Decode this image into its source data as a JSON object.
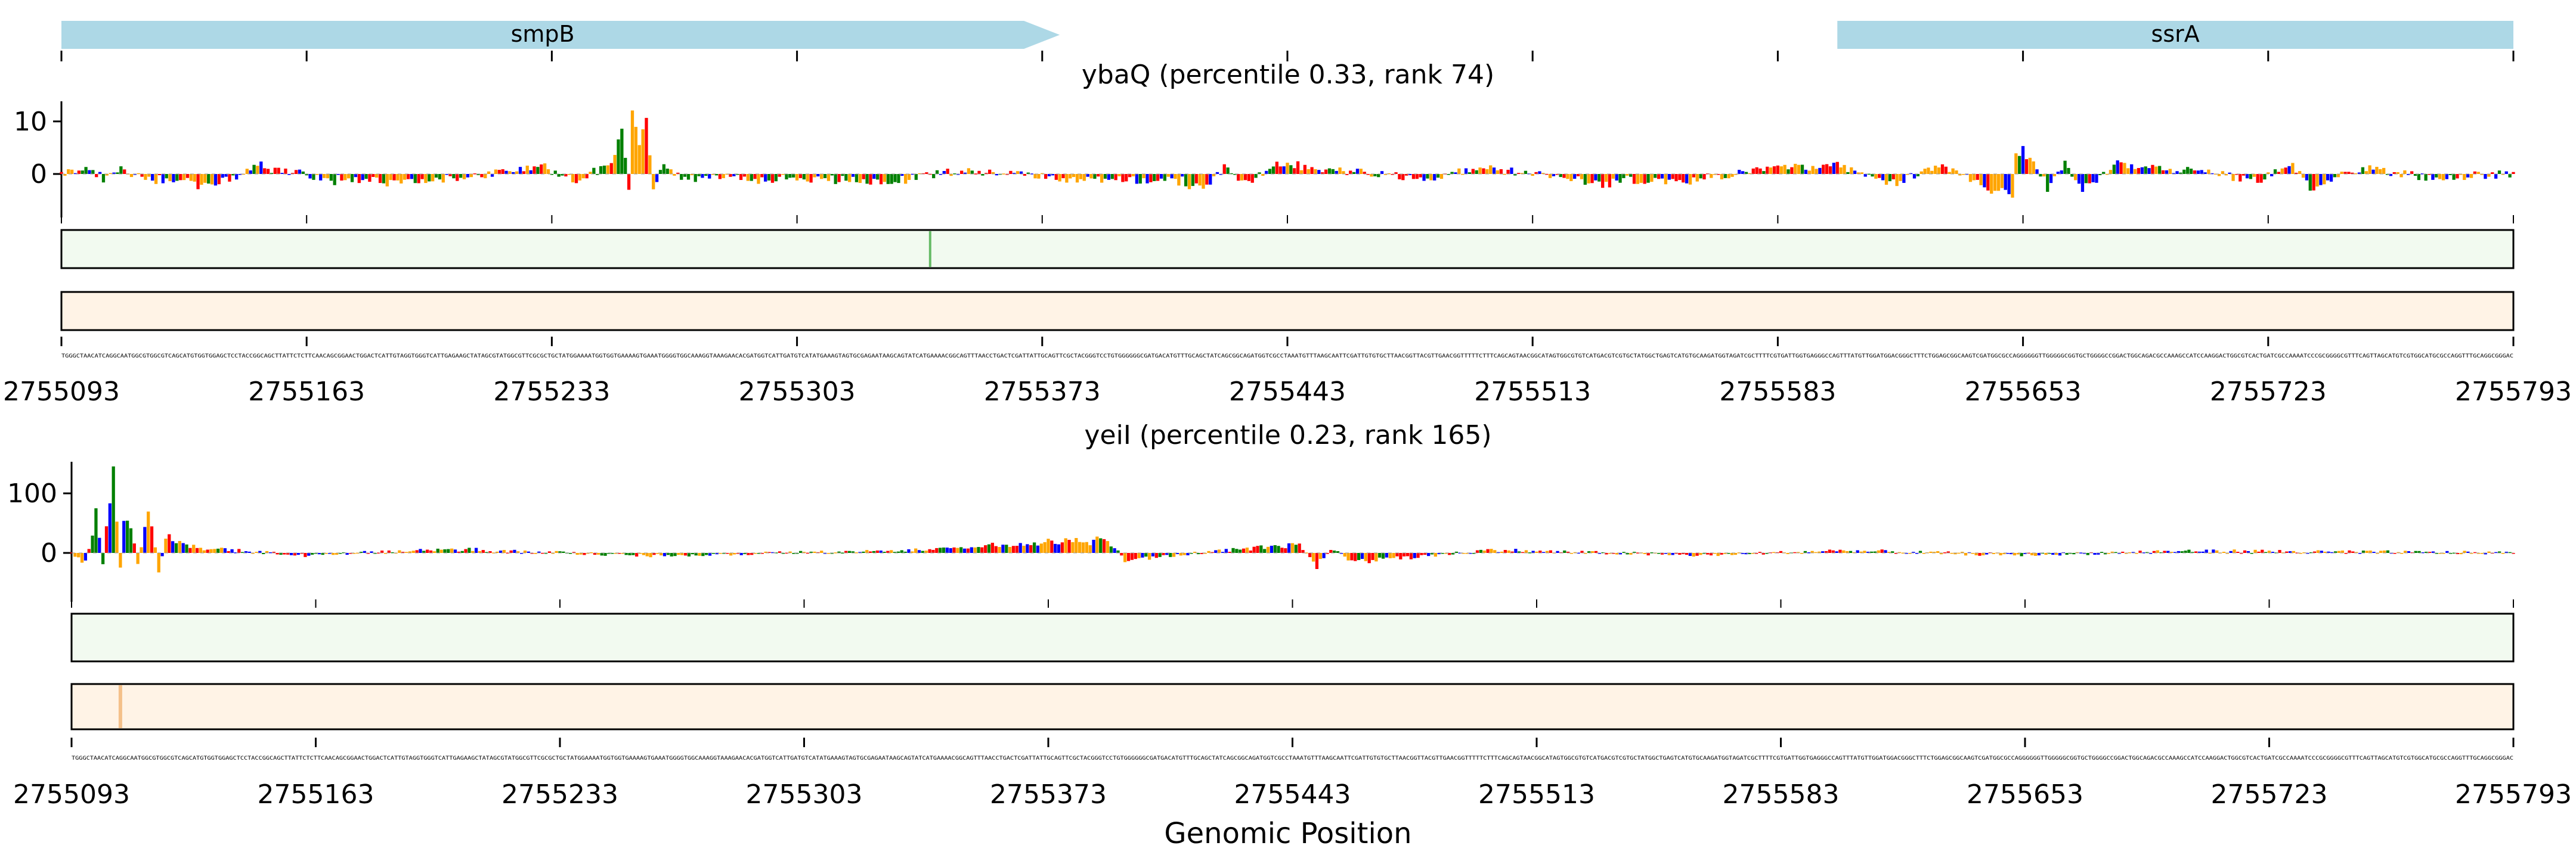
{
  "figure": {
    "xlabel": "Genomic Position"
  },
  "genes": [
    {
      "name": "smpB",
      "start": 2755093,
      "end": 2755378,
      "strand": "+",
      "color": "#add8e6"
    },
    {
      "name": "ssrA",
      "start": 2755600,
      "end": 2755793,
      "strand": "+",
      "color": "#add8e6"
    }
  ],
  "x_ticks": [
    2755093,
    2755163,
    2755233,
    2755303,
    2755373,
    2755443,
    2755513,
    2755583,
    2755653,
    2755723,
    2755793
  ],
  "base_colors": {
    "A": "#008000",
    "C": "#0000ff",
    "G": "#ffa500",
    "T": "#ff0000"
  },
  "sequence": "TGGGCTAACATCAGGCAATGGCGTGGCGTCAGCATGTGGTGGAGCTCCTACCGGCAGCTTATTCTCTTCAACAGCGGAACTGGACTCATTGTAGGTGGGTCATTGAGAAGCTATAGCGTATGGCGTTCGCGCTGCTATGGAAAATGGTGGTGAAAAGTGAAATGGGGTGGCAAAGGTAAAGAACACGATGGTCATTGATGTCATATGAAAGTAGTGCGAGAATAAGCAGTATCATGAAAACGGCAGTTTAACCTGACTCGATTATTGCAGTTCGCTACGGGTCCTGTGGGGGGCGATGACATGTTTGCAGCTATCAGCGGCAGATGGTCGCCTAAATGTTTAAGCAATTCGATTGTGTGCTTAACGGTTACGTTGAACGGTTTTTCTTTCAGCAGTAACGGCATAGTGGCGTGTCATGACGTCGTGCTATGGCTGAGTCATGTGCAAGATGGTAGATCGCTTTTCGTGATTGGTGAGGGCCAGTTTATGTTGGATGGACGGGCTTTCTGGAGCGGCAAGTCGATGGCGCCAGGGGGGTTGGGGGCGGTGCTGGGGCCGGACTGGCAGACGCCAAAGCCATCCAAGGACTGGCGTCACTGATCGCCAAAATCCCGCGGGGCGTTTCAGTTAGCATGTCGTGGCATGCGCCAGGTTTGCAGGCGGGAC",
  "panels": [
    {
      "title": "ybaQ (percentile 0.33, rank 74)",
      "y_ticks": [
        10,
        0
      ],
      "y_range": [
        -5.6,
        16.5
      ],
      "green_strip": {
        "color": "#2ca02c",
        "highlight_position": 2755341
      },
      "orange_strip": {
        "color": "#ff7f0e"
      },
      "x_ticks": [
        2755093,
        2755163,
        2755233,
        2755303,
        2755373,
        2755443,
        2755513,
        2755583,
        2755653,
        2755723,
        2755793
      ]
    },
    {
      "title": "yeiI (percentile 0.23, rank 165)",
      "y_ticks": [
        100,
        0
      ],
      "y_range": [
        -60,
        175
      ],
      "green_strip": {
        "color": "#2ca02c"
      },
      "orange_strip": {
        "color": "#ff7f0e",
        "highlight_position": 2755107
      },
      "x_ticks": [
        2755093,
        2755163,
        2755233,
        2755303,
        2755373,
        2755443,
        2755513,
        2755583,
        2755653,
        2755723,
        2755793
      ]
    }
  ],
  "chart_data": [
    {
      "type": "bar",
      "title": "ybaQ (percentile 0.33, rank 74)",
      "xlabel": "",
      "ylabel": "",
      "xlim": [
        2755093,
        2755793
      ],
      "ylim": [
        -5.6,
        16.5
      ],
      "y_ticks": [
        0,
        10
      ],
      "x": [
        2755093,
        2755100,
        2755105,
        2755110,
        2755120,
        2755135,
        2755150,
        2755170,
        2755200,
        2755230,
        2755240,
        2755250,
        2755253,
        2755255,
        2755256,
        2755258,
        2755260,
        2755262,
        2755265,
        2755270,
        2755300,
        2755330,
        2755350,
        2755380,
        2755410,
        2755420,
        2755425,
        2755430,
        2755440,
        2755460,
        2755480,
        2755500,
        2755530,
        2755560,
        2755580,
        2755600,
        2755615,
        2755630,
        2755650,
        2755651,
        2755655,
        2755660,
        2755665,
        2755670,
        2755680,
        2755700,
        2755720,
        2755730,
        2755735,
        2755750,
        2755770,
        2755793
      ],
      "values": [
        0,
        1.5,
        -1,
        0.8,
        -1.2,
        -3,
        2,
        -1.5,
        -1.8,
        2,
        -2,
        3,
        12,
        -4,
        14,
        9,
        15,
        -3,
        2,
        -1,
        -1.2,
        -1.8,
        1,
        -1.2,
        -1.5,
        -3,
        2,
        -3,
        2,
        1,
        -1.2,
        1.5,
        -2,
        -1.5,
        1.5,
        2,
        -2.5,
        2,
        -5.6,
        6,
        4,
        -3,
        3,
        -4,
        2,
        1,
        -1.5,
        2,
        -3,
        1.5,
        -1,
        0
      ]
    },
    {
      "type": "bar",
      "title": "yeiI (percentile 0.23, rank 165)",
      "xlabel": "Genomic Position",
      "ylabel": "",
      "xlim": [
        2755093,
        2755793
      ],
      "ylim": [
        -60,
        175
      ],
      "y_ticks": [
        0,
        100
      ],
      "x": [
        2755093,
        2755097,
        2755100,
        2755102,
        2755104,
        2755105,
        2755107,
        2755108,
        2755110,
        2755112,
        2755115,
        2755116,
        2755118,
        2755120,
        2755125,
        2755130,
        2755160,
        2755200,
        2755260,
        2755330,
        2755390,
        2755395,
        2755400,
        2755440,
        2755445,
        2755450,
        2755455,
        2755460,
        2755500,
        2755560,
        2755600,
        2755650,
        2755700,
        2755793
      ],
      "values": [
        0,
        -25,
        80,
        -20,
        120,
        160,
        -40,
        90,
        60,
        -30,
        100,
        70,
        -50,
        40,
        20,
        10,
        -5,
        8,
        -6,
        5,
        30,
        -15,
        -10,
        15,
        20,
        -25,
        10,
        -20,
        6,
        -5,
        5,
        -4,
        4,
        0
      ]
    }
  ]
}
